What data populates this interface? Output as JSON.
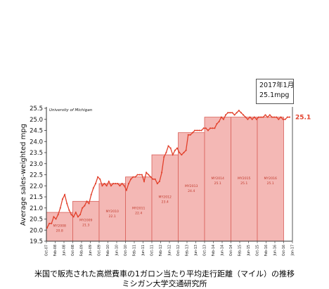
{
  "chart_data": {
    "type": "line",
    "title": "",
    "xlabel": "",
    "ylabel": "Average sales-weighted mpg",
    "source_label": "University of Michigan",
    "ylim": [
      19.5,
      25.5
    ],
    "yticks": [
      "19.5",
      "20.0",
      "20.5",
      "21.0",
      "21.5",
      "22.0",
      "22.5",
      "23.0",
      "23.5",
      "24.0",
      "24.5",
      "25.0",
      "25.5"
    ],
    "xticks": [
      "Oct-07",
      "Feb-08",
      "Jun-08",
      "Oct-08",
      "Feb-09",
      "Jun-09",
      "Oct-09",
      "Feb-10",
      "Jun-10",
      "Oct-10",
      "Feb-11",
      "Jun-11",
      "Oct-11",
      "Feb-12",
      "Jun-12",
      "Oct-12",
      "Feb-13",
      "Jun-13",
      "Oct-13",
      "Feb-14",
      "Jun-14",
      "Oct-14",
      "Feb-15",
      "Jun-15",
      "Oct-15",
      "Feb-16",
      "Jun-16",
      "Oct-16",
      "Jan-17"
    ],
    "model_years": [
      {
        "label": "MY2008",
        "value": "20.8",
        "y": 20.8
      },
      {
        "label": "MY2009",
        "value": "21.3",
        "y": 21.3
      },
      {
        "label": "MY2010",
        "value": "22.1",
        "y": 22.1
      },
      {
        "label": "MY2011",
        "value": "22.4",
        "y": 22.4
      },
      {
        "label": "MY2012",
        "value": "23.4",
        "y": 23.4
      },
      {
        "label": "MY2013",
        "value": "24.4",
        "y": 24.4
      },
      {
        "label": "MY2014",
        "value": "25.1",
        "y": 25.1
      },
      {
        "label": "MY2015",
        "value": "25.1",
        "y": 25.1
      },
      {
        "label": "MY2016",
        "value": "25.1",
        "y": 25.1
      }
    ],
    "series": [
      {
        "values": [
          20.1,
          20.3,
          20.3,
          20.6,
          20.5,
          20.7,
          21.0,
          21.4,
          21.6,
          21.2,
          20.9,
          20.7,
          20.6,
          20.8,
          20.6,
          20.7,
          21.0,
          21.1,
          21.3,
          21.2,
          21.6,
          21.9,
          22.1,
          22.4,
          22.3,
          22.0,
          22.1,
          22.0,
          22.2,
          22.0,
          22.1,
          22.1,
          22.1,
          22.0,
          22.1,
          22.0,
          21.8,
          22.1,
          22.3,
          22.4,
          22.4,
          22.5,
          22.5,
          22.5,
          22.2,
          22.6,
          22.5,
          22.4,
          22.3,
          22.3,
          22.1,
          22.2,
          22.6,
          23.3,
          23.5,
          23.8,
          23.7,
          23.4,
          23.6,
          23.7,
          23.5,
          23.4,
          23.5,
          23.6,
          24.3,
          24.3,
          24.4,
          24.5,
          24.5,
          24.5,
          24.5,
          24.6,
          24.6,
          24.5,
          24.6,
          24.6,
          24.6,
          24.8,
          24.9,
          25.1,
          25.0,
          25.2,
          25.3,
          25.3,
          25.3,
          25.2,
          25.3,
          25.4,
          25.3,
          25.2,
          25.1,
          25.0,
          25.1,
          25.0,
          25.1,
          25.0,
          25.1,
          25.1,
          25.1,
          25.2,
          25.1,
          25.2,
          25.1,
          25.1,
          25.1,
          25.0,
          25.1,
          25.0,
          25.0,
          25.1,
          25.1
        ]
      }
    ],
    "end_label": "25.1"
  },
  "callout": {
    "line1": "2017年1月",
    "line2": "25.1mpg"
  },
  "caption": {
    "line1": "米国で販売された高燃費車の1ガロン当たり平均走行距離（マイル）の推移",
    "line2": "ミシガン大学交通研究所"
  }
}
